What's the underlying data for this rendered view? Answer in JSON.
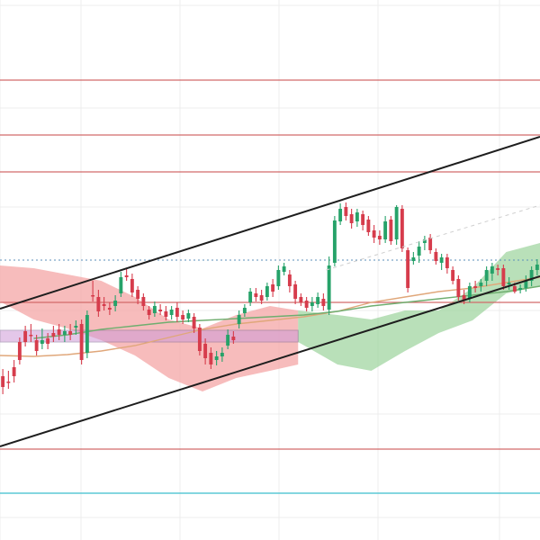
{
  "chart_data": {
    "type": "candlestick",
    "title": "",
    "xlabel": "",
    "ylabel": "",
    "x_count": 96,
    "ylim": [
      0,
      600
    ],
    "grid": true,
    "colors": {
      "bull": "#26a269",
      "bear": "#d63c4c",
      "resistance_line": "#d26a6a",
      "support_line_cyan": "#5cc8d6",
      "channel": "#1e1e1e",
      "cloud_bull": "#9bd39b",
      "cloud_bear": "#f4a6a6",
      "ma_orange": "#e0a77a",
      "ma_green": "#6fae6f",
      "zone": "#cf9bd8",
      "dotted": "#5b8fb9",
      "grid": "#eeeeee"
    },
    "horizontal_levels": [
      {
        "value": 89,
        "kind": "resistance"
      },
      {
        "value": 150,
        "kind": "resistance"
      },
      {
        "value": 191,
        "kind": "resistance"
      },
      {
        "value": 336,
        "kind": "resistance"
      },
      {
        "value": 499,
        "kind": "resistance"
      },
      {
        "value": 548,
        "kind": "support"
      }
    ],
    "dotted_level": 289,
    "channel": {
      "upper": {
        "x1": 0,
        "y1": 343,
        "x2": 96,
        "y2": 152
      },
      "lower": {
        "x1": 0,
        "y1": 496,
        "x2": 96,
        "y2": 307
      }
    },
    "zone": {
      "x_start": 0,
      "x_end": 53,
      "y_top": 367,
      "y_bottom": 380
    },
    "ohlc": [
      [
        418,
        430,
        410,
        438
      ],
      [
        424,
        424,
        412,
        432
      ],
      [
        408,
        418,
        400,
        425
      ],
      [
        380,
        400,
        375,
        405
      ],
      [
        368,
        380,
        362,
        385
      ],
      [
        372,
        372,
        360,
        380
      ],
      [
        378,
        390,
        372,
        395
      ],
      [
        382,
        378,
        365,
        388
      ],
      [
        376,
        382,
        370,
        388
      ],
      [
        370,
        374,
        362,
        380
      ],
      [
        366,
        372,
        360,
        378
      ],
      [
        372,
        368,
        362,
        380
      ],
      [
        368,
        372,
        360,
        378
      ],
      [
        364,
        362,
        356,
        372
      ],
      [
        360,
        400,
        355,
        405
      ],
      [
        392,
        350,
        345,
        398
      ],
      [
        328,
        328,
        312,
        335
      ],
      [
        330,
        346,
        322,
        352
      ],
      [
        338,
        340,
        330,
        345
      ],
      [
        342,
        344,
        336,
        350
      ],
      [
        340,
        334,
        328,
        346
      ],
      [
        326,
        308,
        302,
        330
      ],
      [
        306,
        308,
        298,
        312
      ],
      [
        310,
        325,
        304,
        330
      ],
      [
        322,
        332,
        318,
        338
      ],
      [
        330,
        340,
        326,
        345
      ],
      [
        344,
        350,
        340,
        355
      ],
      [
        348,
        340,
        335,
        352
      ],
      [
        344,
        346,
        338,
        350
      ],
      [
        346,
        352,
        340,
        356
      ],
      [
        350,
        344,
        340,
        355
      ],
      [
        342,
        352,
        336,
        358
      ],
      [
        350,
        355,
        345,
        360
      ],
      [
        354,
        348,
        344,
        358
      ],
      [
        352,
        365,
        348,
        370
      ],
      [
        364,
        390,
        360,
        395
      ],
      [
        382,
        398,
        376,
        405
      ],
      [
        392,
        405,
        386,
        410
      ],
      [
        400,
        396,
        390,
        406
      ],
      [
        396,
        392,
        386,
        402
      ],
      [
        384,
        372,
        366,
        388
      ],
      [
        374,
        378,
        368,
        382
      ],
      [
        360,
        350,
        345,
        365
      ],
      [
        348,
        342,
        338,
        352
      ],
      [
        336,
        324,
        320,
        340
      ],
      [
        326,
        330,
        320,
        335
      ],
      [
        328,
        334,
        322,
        338
      ],
      [
        330,
        318,
        314,
        334
      ],
      [
        316,
        324,
        310,
        330
      ],
      [
        318,
        300,
        295,
        322
      ],
      [
        302,
        296,
        292,
        306
      ],
      [
        305,
        318,
        300,
        325
      ],
      [
        316,
        332,
        312,
        338
      ],
      [
        330,
        336,
        326,
        340
      ],
      [
        334,
        342,
        330,
        346
      ],
      [
        340,
        336,
        330,
        346
      ],
      [
        338,
        330,
        325,
        342
      ],
      [
        332,
        340,
        326,
        345
      ],
      [
        344,
        295,
        285,
        350
      ],
      [
        292,
        245,
        240,
        296
      ],
      [
        246,
        232,
        226,
        250
      ],
      [
        230,
        240,
        225,
        245
      ],
      [
        238,
        248,
        232,
        254
      ],
      [
        246,
        236,
        232,
        252
      ],
      [
        238,
        250,
        234,
        256
      ],
      [
        244,
        258,
        240,
        262
      ],
      [
        256,
        264,
        250,
        270
      ],
      [
        262,
        266,
        256,
        272
      ],
      [
        266,
        246,
        240,
        270
      ],
      [
        244,
        268,
        240,
        272
      ],
      [
        266,
        230,
        228,
        272
      ],
      [
        232,
        276,
        228,
        280
      ],
      [
        278,
        320,
        275,
        325
      ],
      [
        290,
        286,
        280,
        294
      ],
      [
        284,
        274,
        268,
        292
      ],
      [
        270,
        266,
        262,
        278
      ],
      [
        264,
        278,
        260,
        282
      ],
      [
        280,
        290,
        276,
        294
      ],
      [
        292,
        286,
        282,
        300
      ],
      [
        286,
        298,
        282,
        304
      ],
      [
        300,
        312,
        296,
        316
      ],
      [
        310,
        330,
        306,
        334
      ],
      [
        328,
        334,
        322,
        338
      ],
      [
        332,
        318,
        314,
        336
      ],
      [
        318,
        320,
        312,
        325
      ],
      [
        318,
        314,
        310,
        324
      ],
      [
        312,
        300,
        296,
        318
      ],
      [
        304,
        296,
        292,
        312
      ],
      [
        298,
        300,
        294,
        306
      ],
      [
        298,
        318,
        294,
        322
      ],
      [
        316,
        314,
        308,
        322
      ],
      [
        318,
        324,
        314,
        326
      ],
      [
        322,
        320,
        316,
        326
      ],
      [
        320,
        312,
        306,
        324
      ],
      [
        312,
        300,
        296,
        318
      ],
      [
        300,
        294,
        288,
        306
      ]
    ],
    "ma_orange": [
      [
        0,
        395
      ],
      [
        6,
        396
      ],
      [
        12,
        394
      ],
      [
        18,
        390
      ],
      [
        24,
        384
      ],
      [
        30,
        375
      ],
      [
        36,
        366
      ],
      [
        42,
        360
      ],
      [
        48,
        356
      ],
      [
        54,
        352
      ],
      [
        60,
        346
      ],
      [
        66,
        336
      ],
      [
        72,
        330
      ],
      [
        78,
        324
      ],
      [
        84,
        320
      ],
      [
        90,
        314
      ],
      [
        96,
        308
      ]
    ],
    "ma_green": [
      [
        6,
        376
      ],
      [
        12,
        372
      ],
      [
        18,
        366
      ],
      [
        24,
        362
      ],
      [
        30,
        358
      ],
      [
        36,
        356
      ],
      [
        42,
        354
      ],
      [
        48,
        352
      ],
      [
        54,
        350
      ],
      [
        60,
        346
      ],
      [
        66,
        340
      ],
      [
        72,
        336
      ],
      [
        78,
        332
      ],
      [
        84,
        328
      ],
      [
        90,
        324
      ],
      [
        96,
        318
      ]
    ],
    "cloud_bear": [
      [
        0,
        295,
        335
      ],
      [
        6,
        298,
        355
      ],
      [
        12,
        305,
        365
      ],
      [
        18,
        312,
        378
      ],
      [
        24,
        330,
        395
      ],
      [
        30,
        355,
        420
      ],
      [
        36,
        365,
        435
      ],
      [
        42,
        350,
        420
      ],
      [
        48,
        340,
        412
      ],
      [
        53,
        345,
        405
      ]
    ],
    "cloud_bull": [
      [
        53,
        345,
        380
      ],
      [
        60,
        350,
        405
      ],
      [
        66,
        355,
        412
      ],
      [
        72,
        345,
        390
      ],
      [
        78,
        345,
        370
      ],
      [
        84,
        320,
        356
      ],
      [
        90,
        280,
        326
      ],
      [
        96,
        270,
        318
      ]
    ]
  }
}
